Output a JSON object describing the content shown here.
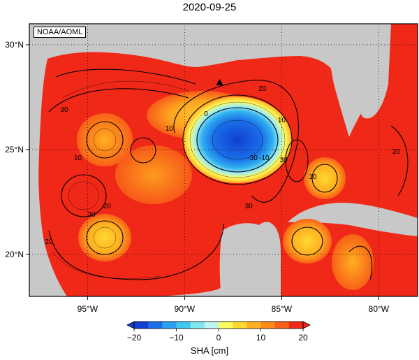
{
  "title": "2020-09-25",
  "credit": "NOAA/AOML",
  "map": {
    "lon_range": [
      -98,
      -78
    ],
    "lat_range": [
      18,
      31
    ],
    "lon_ticks": [
      {
        "value": -95,
        "label": "95°W"
      },
      {
        "value": -90,
        "label": "90°W"
      },
      {
        "value": -85,
        "label": "85°W"
      },
      {
        "value": -80,
        "label": "80°W"
      }
    ],
    "lat_ticks": [
      {
        "value": 30,
        "label": "30°N"
      },
      {
        "value": 25,
        "label": "25°N"
      },
      {
        "value": 20,
        "label": "20°N"
      }
    ],
    "land_color": "#c8c8c8",
    "ocean_color": "#f02818",
    "marker": {
      "lon": -88.2,
      "lat": 28.2,
      "symbol": "triangle"
    },
    "contour_labels": [
      {
        "text": "0",
        "lon": -88.9,
        "lat": 26.6
      },
      {
        "text": "10",
        "lon": -90.8,
        "lat": 25.9
      },
      {
        "text": "10",
        "lon": -85.0,
        "lat": 26.3
      },
      {
        "text": "-10",
        "lon": -85.9,
        "lat": 24.5
      },
      {
        "text": "-30",
        "lon": -86.5,
        "lat": 24.5
      },
      {
        "text": "20",
        "lon": -86.0,
        "lat": 27.8
      },
      {
        "text": "20",
        "lon": -94.0,
        "lat": 22.2
      },
      {
        "text": "30",
        "lon": -96.2,
        "lat": 26.8
      },
      {
        "text": "20",
        "lon": -97.0,
        "lat": 20.5
      },
      {
        "text": "30",
        "lon": -94.8,
        "lat": 21.8
      },
      {
        "text": "10",
        "lon": -95.5,
        "lat": 24.5
      },
      {
        "text": "30",
        "lon": -84.9,
        "lat": 24.4
      },
      {
        "text": "10",
        "lon": -83.4,
        "lat": 23.6
      },
      {
        "text": "30",
        "lon": -86.7,
        "lat": 22.2
      },
      {
        "text": "20",
        "lon": -79.1,
        "lat": 24.8
      }
    ]
  },
  "colorbar": {
    "min": -20,
    "max": 20,
    "ticks": [
      -20,
      -10,
      0,
      10,
      20
    ],
    "tick_labels": [
      "−20",
      "−10",
      "0",
      "10",
      "20"
    ],
    "colors": [
      "#1040d0",
      "#1a6ee8",
      "#2aa0f0",
      "#40c8f0",
      "#80e6f0",
      "#c0f4f0",
      "#fffc60",
      "#ffd830",
      "#ffb020",
      "#ff8a18",
      "#f86018",
      "#f02818"
    ],
    "unit_label": "SHA [cm]"
  }
}
